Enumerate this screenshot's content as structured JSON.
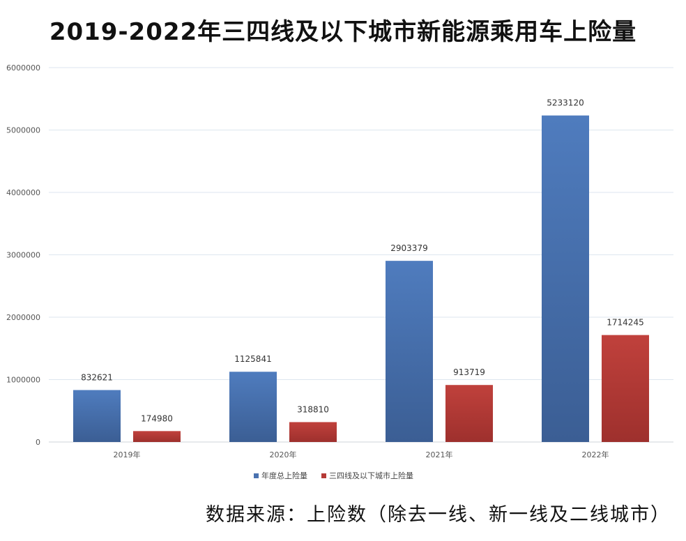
{
  "title": "2019-2022年三四线及以下城市新能源乘用车上险量",
  "source": "数据来源：上险数（除去一线、新一线及二线城市）",
  "chart_data": {
    "type": "bar",
    "title": "2019-2022年三四线及以下城市新能源乘用车上险量",
    "xlabel": "",
    "ylabel": "",
    "categories": [
      "2019年",
      "2020年",
      "2021年",
      "2022年"
    ],
    "ylim": [
      0,
      6000000
    ],
    "yticks": [
      0,
      1000000,
      2000000,
      3000000,
      4000000,
      5000000,
      6000000
    ],
    "grid": true,
    "legend_position": "bottom",
    "series": [
      {
        "name": "年度总上险量",
        "color": "#4a72b0",
        "values": [
          832621,
          1125841,
          2903379,
          5233120
        ]
      },
      {
        "name": "三四线及以下城市上险量",
        "color": "#b53a36",
        "values": [
          174980,
          318810,
          913719,
          1714245
        ]
      }
    ]
  }
}
